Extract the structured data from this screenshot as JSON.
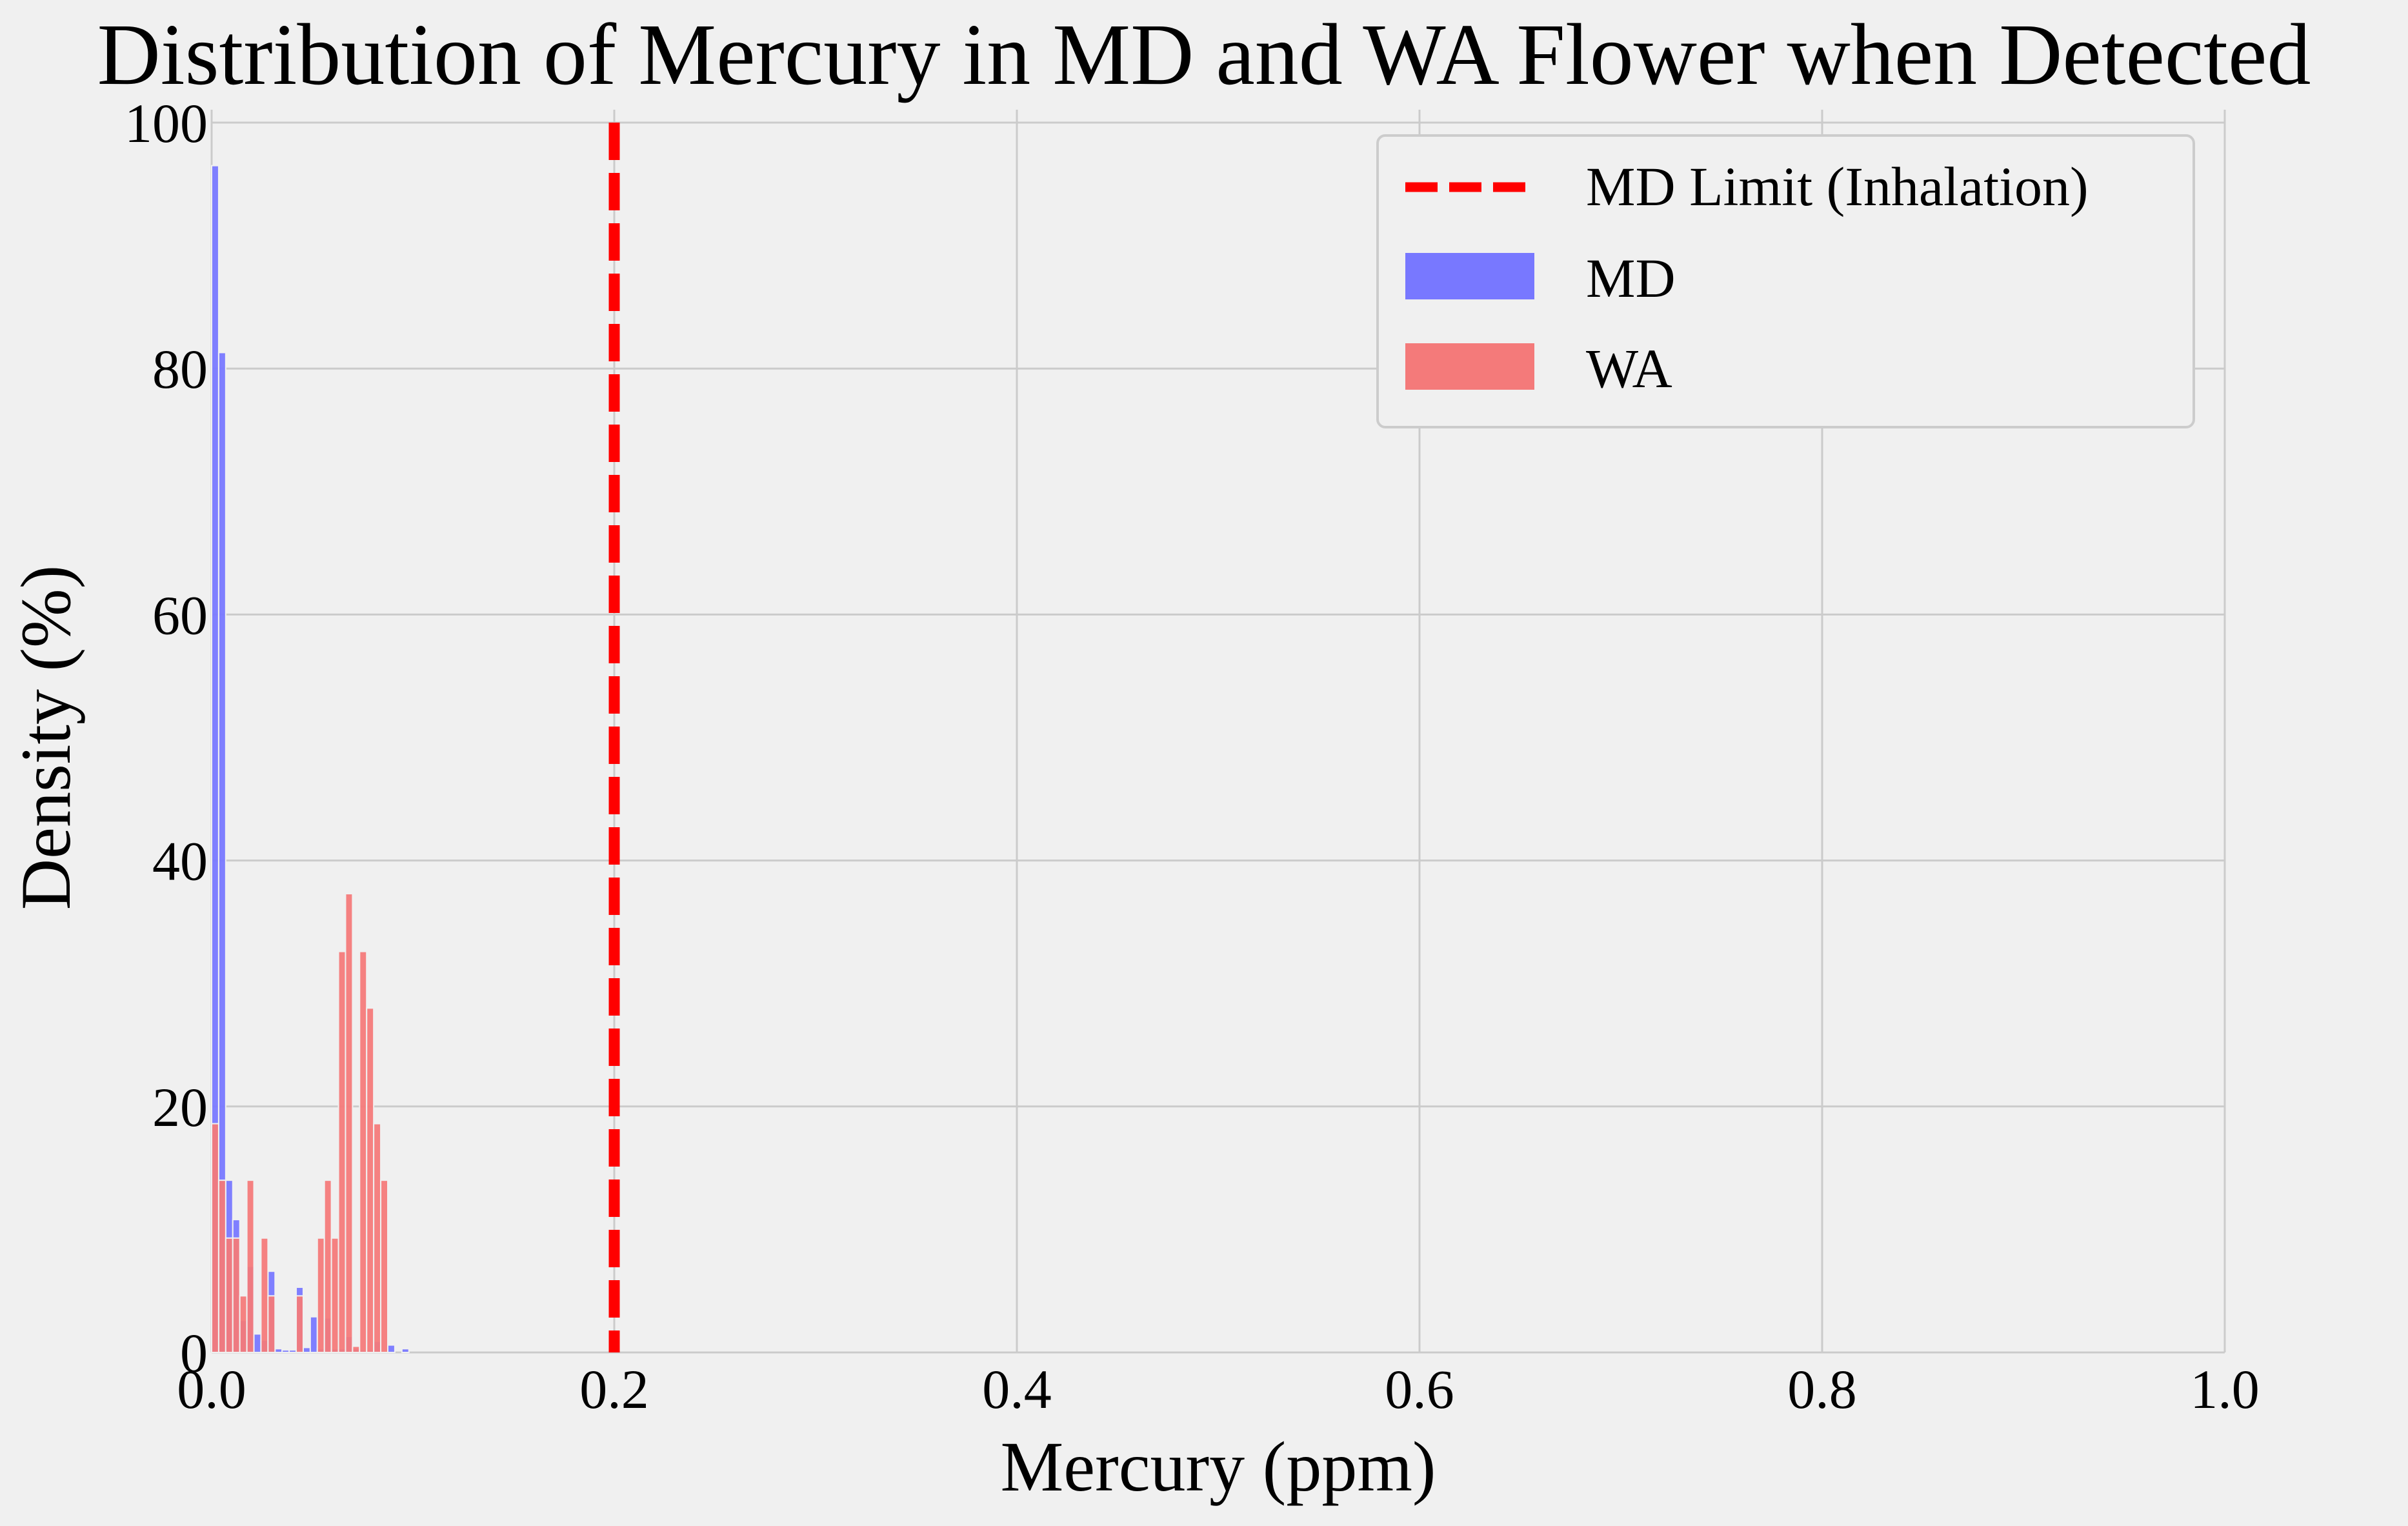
{
  "chart_data": {
    "type": "bar",
    "title": "Distribution of Mercury in MD and WA Flower when Detected",
    "xlabel": "Mercury (ppm)",
    "ylabel": "Density (%)",
    "xlim": [
      0.0,
      1.0
    ],
    "ylim": [
      0,
      100
    ],
    "xticks": [
      "0.0",
      "0.2",
      "0.4",
      "0.6",
      "0.8",
      "1.0"
    ],
    "yticks": [
      "0",
      "20",
      "40",
      "60",
      "80",
      "100"
    ],
    "grid": true,
    "legend_position": "top-right",
    "bin_width": 0.0035,
    "series": [
      {
        "name": "MD",
        "color": "#7878ff",
        "bars": [
          {
            "x": 0.0,
            "y": 96.5
          },
          {
            "x": 0.0035,
            "y": 81.3
          },
          {
            "x": 0.007,
            "y": 14.0
          },
          {
            "x": 0.0105,
            "y": 10.8
          },
          {
            "x": 0.014,
            "y": 2.6
          },
          {
            "x": 0.0175,
            "y": 7.0
          },
          {
            "x": 0.021,
            "y": 1.5
          },
          {
            "x": 0.0245,
            "y": 1.0
          },
          {
            "x": 0.028,
            "y": 6.6
          },
          {
            "x": 0.0315,
            "y": 0.3
          },
          {
            "x": 0.035,
            "y": 0.2
          },
          {
            "x": 0.0385,
            "y": 0.2
          },
          {
            "x": 0.042,
            "y": 5.3
          },
          {
            "x": 0.0455,
            "y": 0.4
          },
          {
            "x": 0.049,
            "y": 2.9
          },
          {
            "x": 0.0525,
            "y": 0.3
          },
          {
            "x": 0.056,
            "y": 2.8
          },
          {
            "x": 0.0595,
            "y": 0.3
          },
          {
            "x": 0.063,
            "y": 0.3
          },
          {
            "x": 0.0665,
            "y": 1.3
          },
          {
            "x": 0.07,
            "y": 0.3
          },
          {
            "x": 0.0735,
            "y": 0.2
          },
          {
            "x": 0.077,
            "y": 0.2
          },
          {
            "x": 0.0805,
            "y": 0.9
          },
          {
            "x": 0.0875,
            "y": 0.6
          },
          {
            "x": 0.0945,
            "y": 0.3
          }
        ]
      },
      {
        "name": "WA",
        "color": "#f47a7a",
        "bars": [
          {
            "x": 0.0,
            "y": 18.6
          },
          {
            "x": 0.0035,
            "y": 14.0
          },
          {
            "x": 0.007,
            "y": 9.3
          },
          {
            "x": 0.0105,
            "y": 9.3
          },
          {
            "x": 0.014,
            "y": 4.6
          },
          {
            "x": 0.0175,
            "y": 14.0
          },
          {
            "x": 0.0245,
            "y": 9.3
          },
          {
            "x": 0.028,
            "y": 4.6
          },
          {
            "x": 0.042,
            "y": 4.6
          },
          {
            "x": 0.0525,
            "y": 9.3
          },
          {
            "x": 0.056,
            "y": 14.0
          },
          {
            "x": 0.0595,
            "y": 9.3
          },
          {
            "x": 0.063,
            "y": 32.6
          },
          {
            "x": 0.0665,
            "y": 37.3
          },
          {
            "x": 0.07,
            "y": 0.5
          },
          {
            "x": 0.0735,
            "y": 32.6
          },
          {
            "x": 0.077,
            "y": 28.0
          },
          {
            "x": 0.0805,
            "y": 18.6
          },
          {
            "x": 0.084,
            "y": 14.0
          }
        ]
      }
    ],
    "reference_line": {
      "name": "MD Limit (Inhalation)",
      "x": 0.2,
      "color": "#ff0000",
      "style": "dashed"
    },
    "legend": [
      {
        "label": "MD Limit (Inhalation)",
        "kind": "dashed-line",
        "color": "#ff0000"
      },
      {
        "label": "MD",
        "kind": "patch",
        "color": "#7878ff"
      },
      {
        "label": "WA",
        "kind": "patch",
        "color": "#f47a7a"
      }
    ]
  }
}
